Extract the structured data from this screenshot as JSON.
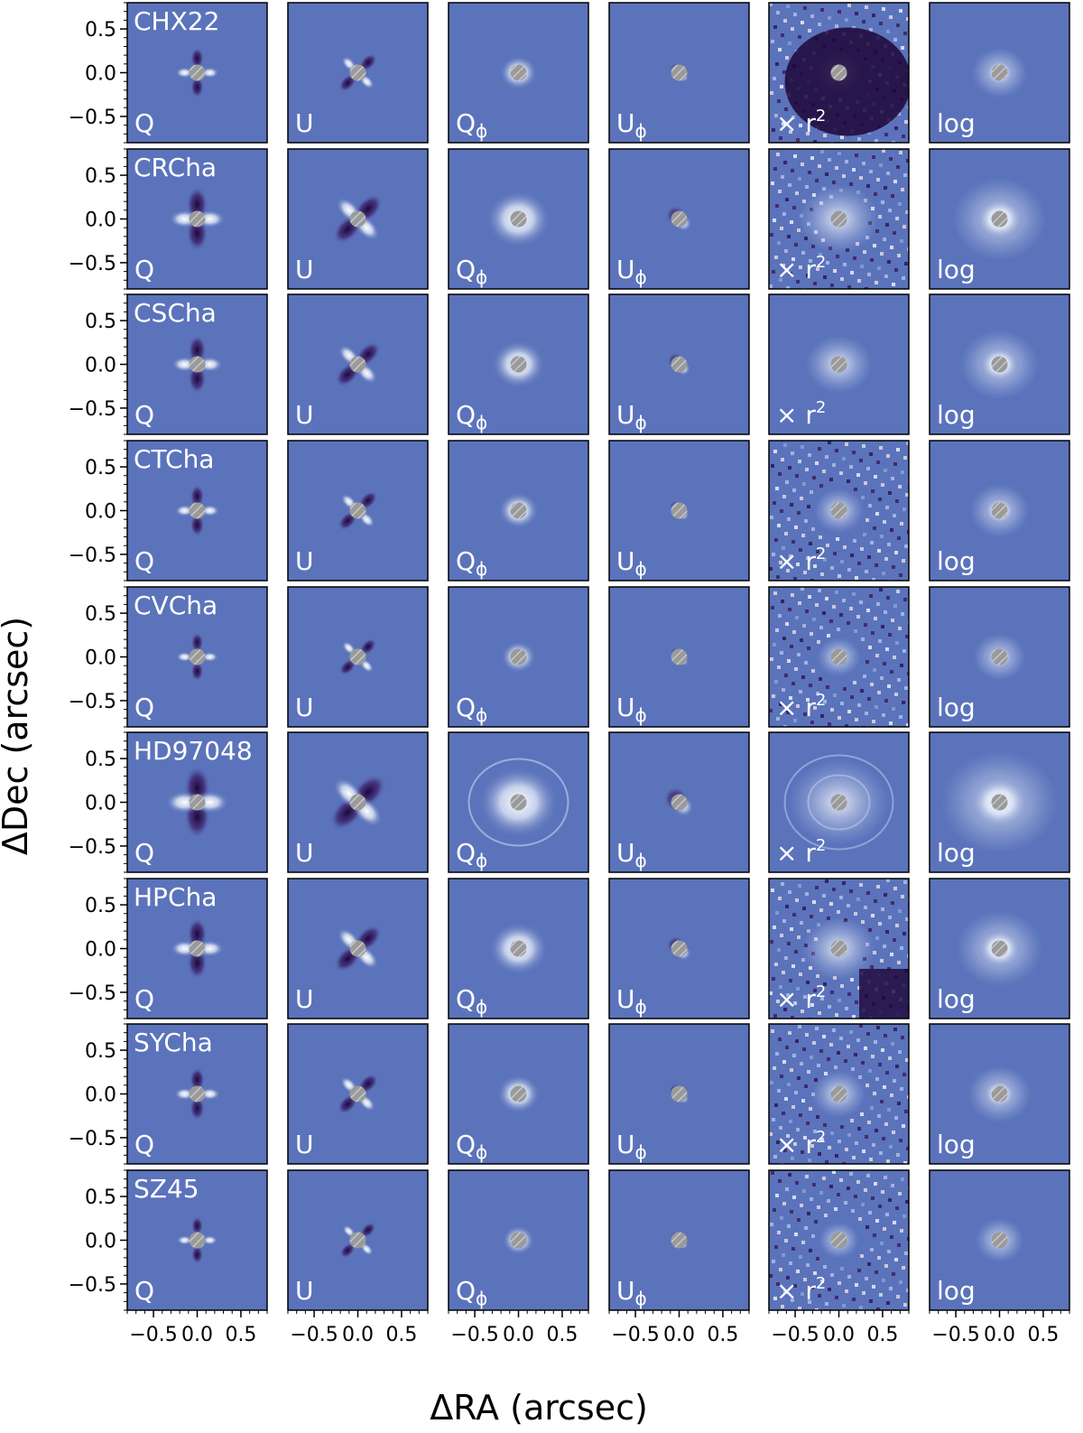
{
  "figure": {
    "xlabel": "ΔRA (arcsec)",
    "ylabel": "ΔDec (arcsec)",
    "ticks": [
      -0.5,
      0.0,
      0.5
    ],
    "tick_labels": [
      "−0.5",
      "0.0",
      "0.5"
    ],
    "axis_range": [
      -0.8,
      0.8
    ],
    "panel_labels": [
      {
        "main": "Q",
        "sub": ""
      },
      {
        "main": "U",
        "sub": ""
      },
      {
        "main": "Q",
        "sub": "ϕ"
      },
      {
        "main": "U",
        "sub": "ϕ"
      },
      {
        "main": "× r",
        "sup": "2"
      },
      {
        "main": "log",
        "sub": ""
      }
    ],
    "targets": [
      "CHX22",
      "CRCha",
      "CSCha",
      "CTCha",
      "CVCha",
      "HD97048",
      "HPCha",
      "SYCha",
      "SZ45"
    ],
    "colormap": [
      "#2c0a4a",
      "#4a5fae",
      "#ffffff"
    ],
    "background_color": "#5b73bb",
    "mask_color": "#9a9a9a"
  }
}
